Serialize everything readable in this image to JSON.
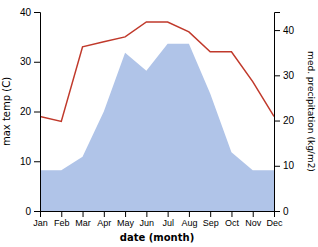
{
  "chart_data": {
    "type": "line",
    "xlabel": "date (month)",
    "ylabel": "max temp (C)",
    "y2label": "med. precipitation (kg/m2)",
    "categories": [
      "Jan",
      "Feb",
      "Mar",
      "Apr",
      "May",
      "Jun",
      "Jul",
      "Aug",
      "Sep",
      "Oct",
      "Nov",
      "Dec"
    ],
    "series": [
      {
        "type": "area",
        "axis": "y2",
        "color": "#b0c4e8",
        "values": [
          9,
          9,
          12,
          22,
          35,
          31,
          37,
          37,
          26,
          13,
          9,
          9
        ]
      },
      {
        "type": "line",
        "color": "#c0392b",
        "values": [
          19,
          18,
          33,
          34,
          35,
          38,
          38,
          36,
          32,
          32,
          26,
          19
        ]
      }
    ],
    "ylim": [
      0,
      40
    ],
    "yticks": [
      0,
      10,
      20,
      30,
      40
    ],
    "y2lim": [
      0,
      44
    ],
    "y2ticks": [
      0,
      10,
      20,
      30,
      40
    ],
    "grid": false
  }
}
